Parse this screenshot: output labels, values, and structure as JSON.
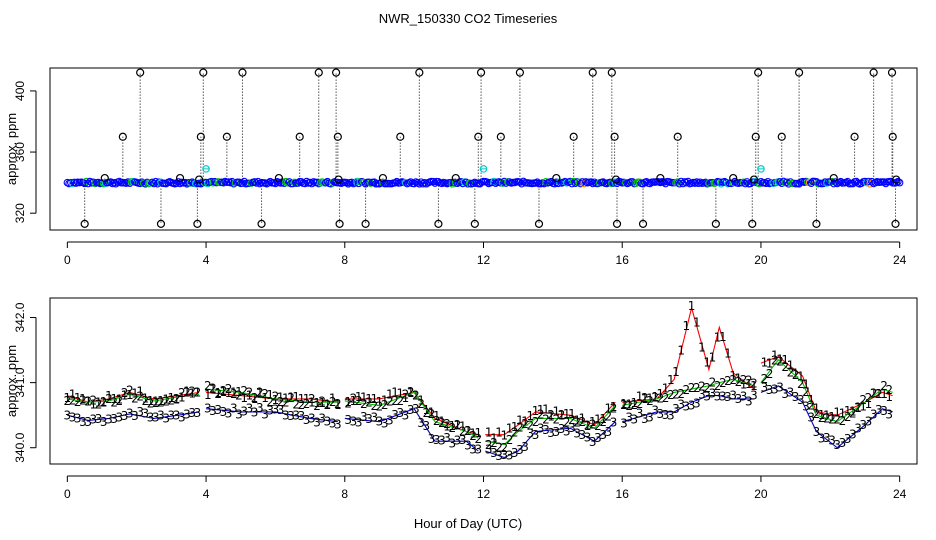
{
  "title": "NWR_150330  CO2 Timeseries",
  "xlabel": "Hour of Day (UTC)",
  "chart_data": [
    {
      "type": "scatter",
      "panel": "top",
      "ylabel": "approx. ppm",
      "xlim": [
        -0.5,
        24.5
      ],
      "ylim": [
        309,
        415
      ],
      "x_ticks": [
        0,
        4,
        8,
        12,
        16,
        20,
        24
      ],
      "x_tick_labels": [
        "0",
        "4",
        "8",
        "12",
        "16",
        "20",
        "24"
      ],
      "y_ticks": [
        320,
        360,
        400
      ],
      "y_tick_labels": [
        "320",
        "360",
        "400"
      ],
      "baseline": 340,
      "series_colors": [
        "#0000ff",
        "#00c000",
        "#00c8c8",
        "#ff8c00"
      ],
      "spike_color": "#000000",
      "spike_markers": [
        {
          "x": 0.5,
          "y": 313
        },
        {
          "x": 1.08,
          "y": 343
        },
        {
          "x": 1.6,
          "y": 370
        },
        {
          "x": 2.1,
          "y": 412
        },
        {
          "x": 2.7,
          "y": 313
        },
        {
          "x": 3.25,
          "y": 343
        },
        {
          "x": 3.75,
          "y": 313
        },
        {
          "x": 3.85,
          "y": 370
        },
        {
          "x": 3.92,
          "y": 412
        },
        {
          "x": 3.8,
          "y": 342
        },
        {
          "x": 4.6,
          "y": 370
        },
        {
          "x": 5.05,
          "y": 412
        },
        {
          "x": 5.6,
          "y": 313
        },
        {
          "x": 6.1,
          "y": 343
        },
        {
          "x": 6.7,
          "y": 370
        },
        {
          "x": 7.25,
          "y": 412
        },
        {
          "x": 7.75,
          "y": 412
        },
        {
          "x": 7.8,
          "y": 370
        },
        {
          "x": 7.85,
          "y": 313
        },
        {
          "x": 7.82,
          "y": 342
        },
        {
          "x": 8.6,
          "y": 313
        },
        {
          "x": 9.1,
          "y": 343
        },
        {
          "x": 9.6,
          "y": 370
        },
        {
          "x": 10.15,
          "y": 412
        },
        {
          "x": 10.7,
          "y": 313
        },
        {
          "x": 11.2,
          "y": 343
        },
        {
          "x": 11.75,
          "y": 313
        },
        {
          "x": 11.85,
          "y": 370
        },
        {
          "x": 11.93,
          "y": 412
        },
        {
          "x": 12.5,
          "y": 370
        },
        {
          "x": 13.05,
          "y": 412
        },
        {
          "x": 13.6,
          "y": 313
        },
        {
          "x": 14.1,
          "y": 343
        },
        {
          "x": 14.6,
          "y": 370
        },
        {
          "x": 15.15,
          "y": 412
        },
        {
          "x": 15.7,
          "y": 412
        },
        {
          "x": 15.78,
          "y": 370
        },
        {
          "x": 15.85,
          "y": 313
        },
        {
          "x": 15.82,
          "y": 342
        },
        {
          "x": 16.6,
          "y": 313
        },
        {
          "x": 17.1,
          "y": 343
        },
        {
          "x": 17.6,
          "y": 370
        },
        {
          "x": 18.7,
          "y": 313
        },
        {
          "x": 19.2,
          "y": 343
        },
        {
          "x": 19.75,
          "y": 313
        },
        {
          "x": 19.85,
          "y": 370
        },
        {
          "x": 19.92,
          "y": 412
        },
        {
          "x": 19.8,
          "y": 342
        },
        {
          "x": 20.6,
          "y": 370
        },
        {
          "x": 21.1,
          "y": 412
        },
        {
          "x": 21.6,
          "y": 313
        },
        {
          "x": 22.1,
          "y": 343
        },
        {
          "x": 22.7,
          "y": 370
        },
        {
          "x": 23.25,
          "y": 412
        },
        {
          "x": 23.78,
          "y": 412
        },
        {
          "x": 23.8,
          "y": 370
        },
        {
          "x": 23.88,
          "y": 313
        },
        {
          "x": 23.9,
          "y": 342
        }
      ],
      "cyan_markers": [
        {
          "x": 4.0,
          "y": 349
        },
        {
          "x": 12.0,
          "y": 349
        },
        {
          "x": 20.0,
          "y": 349
        }
      ]
    },
    {
      "type": "line",
      "panel": "bottom",
      "ylabel": "approx. ppm",
      "xlim": [
        -0.5,
        24.5
      ],
      "ylim": [
        339.75,
        342.3
      ],
      "x_ticks": [
        0,
        4,
        8,
        12,
        16,
        20,
        24
      ],
      "x_tick_labels": [
        "0",
        "4",
        "8",
        "12",
        "16",
        "20",
        "24"
      ],
      "y_ticks": [
        340.0,
        341.0,
        342.0
      ],
      "y_tick_labels": [
        "340.0",
        "341.0",
        "342.0"
      ],
      "series": [
        {
          "name": "1",
          "color": "#ff0000",
          "points": [
            [
              0,
              340.8
            ],
            [
              0.6,
              340.7
            ],
            [
              1.2,
              340.75
            ],
            [
              1.8,
              340.85
            ],
            [
              2.5,
              340.75
            ],
            [
              3.2,
              340.8
            ],
            [
              3.8,
              340.85
            ],
            [
              3.85,
              null
            ],
            [
              4.0,
              340.85
            ],
            [
              5.0,
              340.8
            ],
            [
              6.0,
              340.75
            ],
            [
              7.0,
              340.75
            ],
            [
              7.8,
              340.7
            ],
            [
              7.85,
              null
            ],
            [
              8.0,
              340.75
            ],
            [
              9.0,
              340.75
            ],
            [
              10.0,
              340.85
            ],
            [
              10.6,
              340.45
            ],
            [
              11.5,
              340.25
            ],
            [
              11.85,
              340.2
            ],
            [
              11.9,
              null
            ],
            [
              12.05,
              340.2
            ],
            [
              12.6,
              340.2
            ],
            [
              13.0,
              340.35
            ],
            [
              13.5,
              340.55
            ],
            [
              14.5,
              340.5
            ],
            [
              15.2,
              340.35
            ],
            [
              15.8,
              340.7
            ],
            [
              15.85,
              null
            ],
            [
              16.0,
              340.7
            ],
            [
              17.0,
              340.75
            ],
            [
              17.5,
              341.05
            ],
            [
              18.0,
              342.15
            ],
            [
              18.5,
              341.2
            ],
            [
              18.8,
              341.85
            ],
            [
              19.2,
              341.15
            ],
            [
              19.8,
              340.9
            ],
            [
              19.85,
              null
            ],
            [
              20.0,
              341.3
            ],
            [
              20.5,
              341.4
            ],
            [
              21.2,
              341.1
            ],
            [
              21.6,
              340.55
            ],
            [
              22.2,
              340.5
            ],
            [
              23.0,
              340.7
            ],
            [
              23.5,
              340.85
            ],
            [
              23.8,
              340.8
            ]
          ]
        },
        {
          "name": "2",
          "color": "#00c000",
          "points": [
            [
              0,
              340.75
            ],
            [
              0.6,
              340.7
            ],
            [
              1.2,
              340.72
            ],
            [
              1.8,
              340.82
            ],
            [
              2.5,
              340.72
            ],
            [
              3.2,
              340.78
            ],
            [
              3.8,
              340.82
            ],
            [
              3.85,
              null
            ],
            [
              4.0,
              340.9
            ],
            [
              5.0,
              340.85
            ],
            [
              6.0,
              340.75
            ],
            [
              7.0,
              340.7
            ],
            [
              7.8,
              340.7
            ],
            [
              7.85,
              null
            ],
            [
              8.0,
              340.72
            ],
            [
              9.0,
              340.65
            ],
            [
              10.0,
              340.85
            ],
            [
              10.6,
              340.4
            ],
            [
              11.5,
              340.25
            ],
            [
              11.85,
              340.15
            ],
            [
              11.9,
              null
            ],
            [
              12.05,
              340.1
            ],
            [
              12.6,
              340.05
            ],
            [
              13.0,
              340.25
            ],
            [
              13.5,
              340.45
            ],
            [
              14.5,
              340.45
            ],
            [
              15.2,
              340.3
            ],
            [
              15.8,
              340.65
            ],
            [
              15.85,
              null
            ],
            [
              16.0,
              340.65
            ],
            [
              17.0,
              340.75
            ],
            [
              17.5,
              340.85
            ],
            [
              18.0,
              340.9
            ],
            [
              18.5,
              340.95
            ],
            [
              18.8,
              341.0
            ],
            [
              19.2,
              341.05
            ],
            [
              19.8,
              340.95
            ],
            [
              19.85,
              null
            ],
            [
              20.0,
              341.0
            ],
            [
              20.5,
              341.35
            ],
            [
              21.2,
              341.0
            ],
            [
              21.6,
              340.5
            ],
            [
              22.2,
              340.4
            ],
            [
              23.0,
              340.7
            ],
            [
              23.5,
              340.9
            ],
            [
              23.8,
              340.85
            ]
          ]
        },
        {
          "name": "3",
          "color": "#0000cc",
          "points": [
            [
              0,
              340.5
            ],
            [
              0.6,
              340.42
            ],
            [
              1.2,
              340.45
            ],
            [
              1.8,
              340.52
            ],
            [
              2.5,
              340.45
            ],
            [
              3.2,
              340.5
            ],
            [
              3.8,
              340.55
            ],
            [
              3.85,
              null
            ],
            [
              4.0,
              340.6
            ],
            [
              5.0,
              340.55
            ],
            [
              6.0,
              340.55
            ],
            [
              7.0,
              340.45
            ],
            [
              7.8,
              340.4
            ],
            [
              7.85,
              null
            ],
            [
              8.0,
              340.45
            ],
            [
              9.0,
              340.4
            ],
            [
              10.0,
              340.6
            ],
            [
              10.6,
              340.1
            ],
            [
              11.5,
              340.1
            ],
            [
              11.85,
              339.95
            ],
            [
              11.9,
              null
            ],
            [
              12.05,
              339.95
            ],
            [
              12.6,
              339.85
            ],
            [
              13.0,
              339.95
            ],
            [
              13.5,
              340.25
            ],
            [
              14.5,
              340.3
            ],
            [
              15.2,
              340.1
            ],
            [
              15.8,
              340.4
            ],
            [
              15.85,
              null
            ],
            [
              16.0,
              340.4
            ],
            [
              17.0,
              340.55
            ],
            [
              17.5,
              340.55
            ],
            [
              18.0,
              340.7
            ],
            [
              18.5,
              340.8
            ],
            [
              18.8,
              340.8
            ],
            [
              19.2,
              340.75
            ],
            [
              19.8,
              340.75
            ],
            [
              19.85,
              null
            ],
            [
              20.0,
              340.85
            ],
            [
              20.5,
              340.95
            ],
            [
              21.2,
              340.7
            ],
            [
              21.6,
              340.25
            ],
            [
              22.2,
              340.0
            ],
            [
              23.0,
              340.35
            ],
            [
              23.5,
              340.6
            ],
            [
              23.8,
              340.55
            ]
          ]
        }
      ]
    }
  ]
}
